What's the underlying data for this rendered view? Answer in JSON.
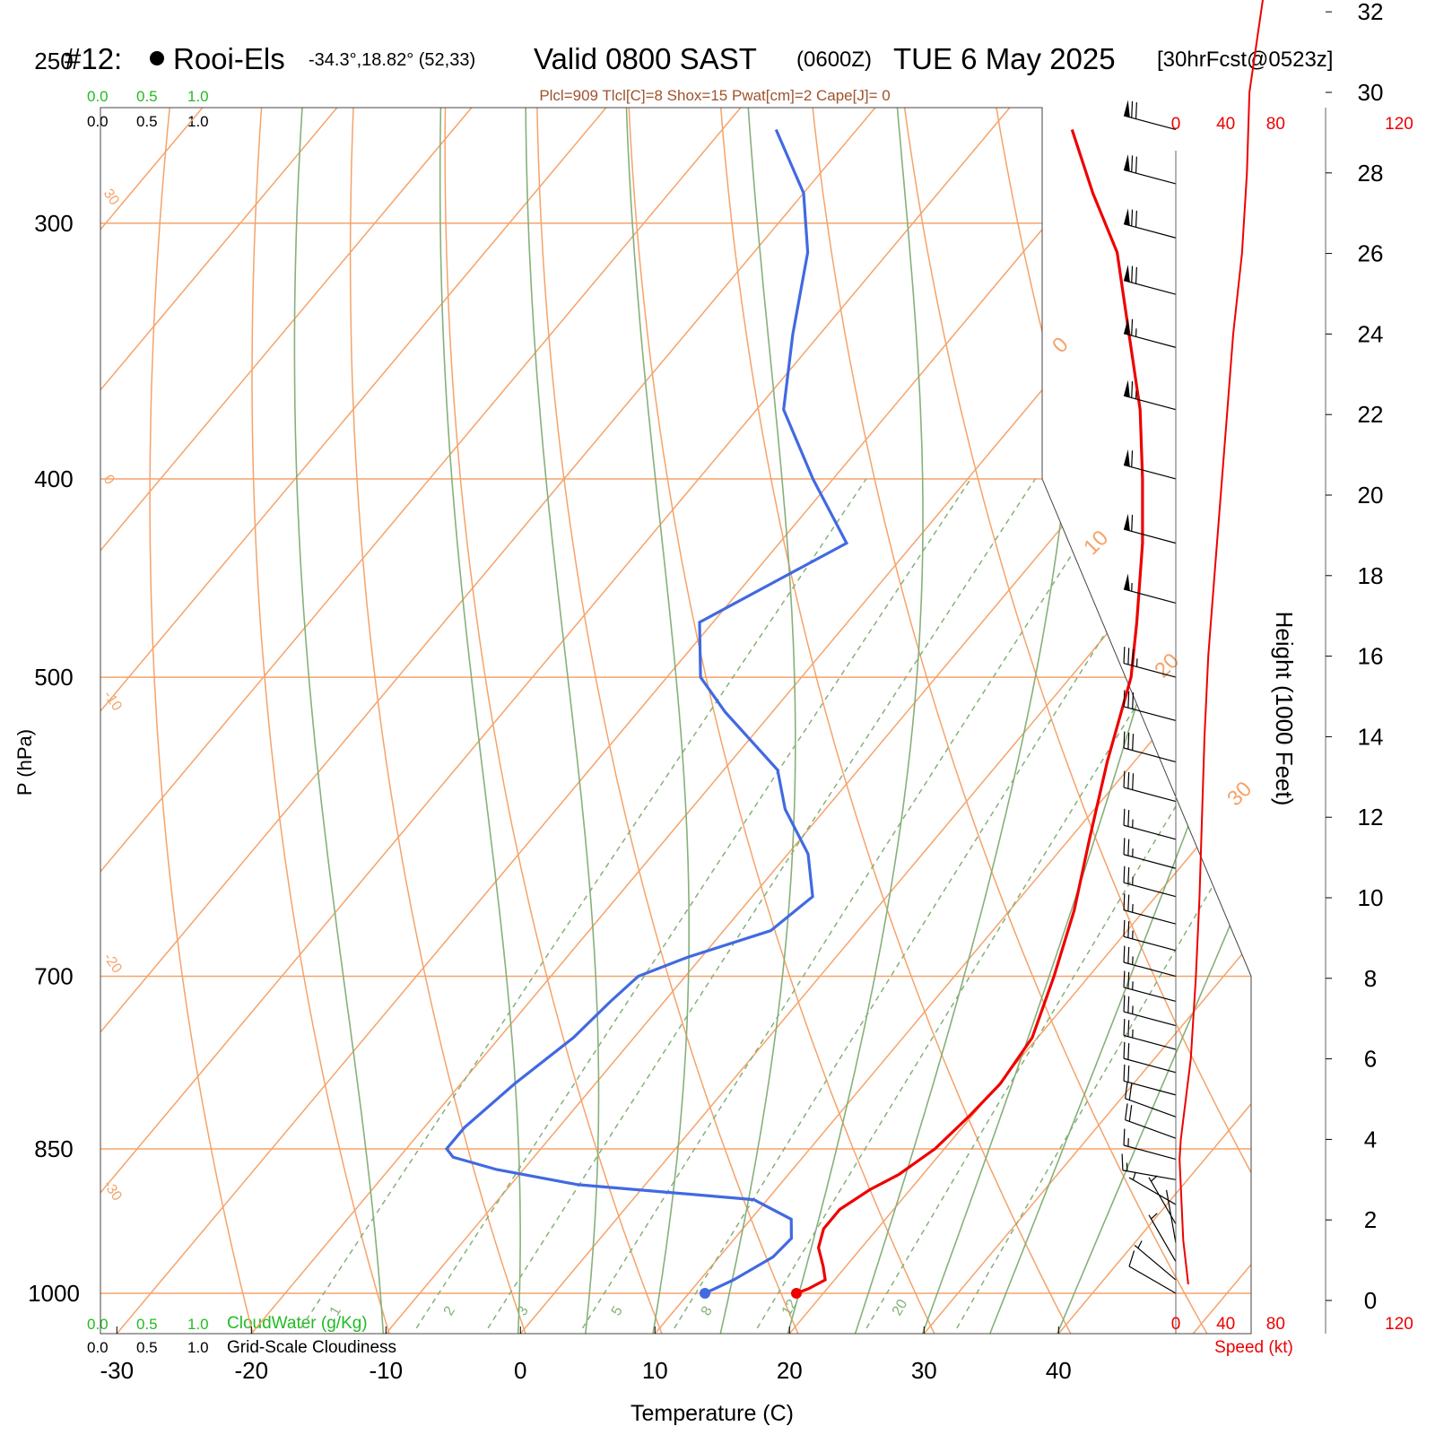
{
  "header": {
    "station_id": "#12:",
    "station_name": "Rooi-Els",
    "coords": "-34.3°,18.82° (52,33)",
    "valid": "Valid 0800 SAST",
    "zulu": "(0600Z)",
    "date": "TUE 6 May 2025",
    "forecast": "[30hrFcst@0523z]",
    "indices": "Plcl=909 Tlcl[C]=8 Shox=15 Pwat[cm]=2 Cape[J]= 0"
  },
  "legend": {
    "cloudwater_label": "CloudWater (g/Kg)",
    "cloudiness_label": "Grid-Scale Cloudiness",
    "scale_ticks": [
      "0.0",
      "0.5",
      "1.0"
    ]
  },
  "colors": {
    "isotherm": "#f5a36a",
    "dry_adiabat": "#86b07a",
    "mixing_ratio": "#86b07a",
    "temperature": "#ee0000",
    "dewpoint": "#4169e1",
    "cloudwater": "#22bb22",
    "indices_text": "#a0522d",
    "speed": "#ee0000",
    "wind_barb": "#000000"
  },
  "chart_data": [
    {
      "type": "skew-t",
      "xlabel": "Temperature (C)",
      "ylabel": "P (hPa)",
      "xlim": [
        -30,
        50
      ],
      "ylim": [
        1000,
        250
      ],
      "x_ticks": [
        -30,
        -20,
        -10,
        0,
        10,
        20,
        30,
        40
      ],
      "p_ticks": [
        250,
        300,
        400,
        500,
        700,
        850,
        1000
      ],
      "isotherm_labels": [
        "-30",
        "-20",
        "-10",
        "0",
        "10",
        "20",
        "30",
        "0",
        "10",
        "20",
        "30"
      ],
      "mixing_ratio_labels": [
        "1",
        "2",
        "3",
        "5",
        "8",
        "12",
        "20"
      ],
      "series": [
        {
          "variable": "temperature",
          "points": [
            {
              "p": 1000,
              "t": 18.0
            },
            {
              "p": 995,
              "t": 18.6
            },
            {
              "p": 985,
              "t": 19.3
            },
            {
              "p": 970,
              "t": 18.3
            },
            {
              "p": 950,
              "t": 16.8
            },
            {
              "p": 930,
              "t": 16.0
            },
            {
              "p": 910,
              "t": 16.0
            },
            {
              "p": 890,
              "t": 17.0
            },
            {
              "p": 875,
              "t": 18.2
            },
            {
              "p": 850,
              "t": 19.3
            },
            {
              "p": 820,
              "t": 19.8
            },
            {
              "p": 790,
              "t": 20.1
            },
            {
              "p": 750,
              "t": 19.6
            },
            {
              "p": 700,
              "t": 17.4
            },
            {
              "p": 650,
              "t": 14.8
            },
            {
              "p": 600,
              "t": 11.5
            },
            {
              "p": 550,
              "t": 8.0
            },
            {
              "p": 500,
              "t": 4.5
            },
            {
              "p": 470,
              "t": 1.5
            },
            {
              "p": 430,
              "t": -3.0
            },
            {
              "p": 400,
              "t": -7.0
            },
            {
              "p": 370,
              "t": -11.5
            },
            {
              "p": 340,
              "t": -17.0
            },
            {
              "p": 310,
              "t": -23.0
            },
            {
              "p": 290,
              "t": -28.5
            },
            {
              "p": 270,
              "t": -34.0
            }
          ]
        },
        {
          "variable": "dewpoint",
          "points": [
            {
              "p": 1000,
              "t": 11.2
            },
            {
              "p": 985,
              "t": 12.5
            },
            {
              "p": 960,
              "t": 14.0
            },
            {
              "p": 940,
              "t": 14.2
            },
            {
              "p": 920,
              "t": 13.0
            },
            {
              "p": 900,
              "t": 9.0
            },
            {
              "p": 885,
              "t": -5.0
            },
            {
              "p": 870,
              "t": -12.0
            },
            {
              "p": 858,
              "t": -16.0
            },
            {
              "p": 850,
              "t": -17.0
            },
            {
              "p": 830,
              "t": -17.0
            },
            {
              "p": 790,
              "t": -16.0
            },
            {
              "p": 750,
              "t": -14.5
            },
            {
              "p": 720,
              "t": -14.0
            },
            {
              "p": 700,
              "t": -13.5
            },
            {
              "p": 685,
              "t": -11.0
            },
            {
              "p": 665,
              "t": -6.5
            },
            {
              "p": 640,
              "t": -5.5
            },
            {
              "p": 610,
              "t": -8.5
            },
            {
              "p": 580,
              "t": -13.0
            },
            {
              "p": 555,
              "t": -16.0
            },
            {
              "p": 520,
              "t": -23.5
            },
            {
              "p": 500,
              "t": -27.5
            },
            {
              "p": 470,
              "t": -31.0
            },
            {
              "p": 430,
              "t": -25.0
            },
            {
              "p": 400,
              "t": -31.5
            },
            {
              "p": 370,
              "t": -38.0
            },
            {
              "p": 340,
              "t": -42.0
            },
            {
              "p": 310,
              "t": -46.0
            },
            {
              "p": 290,
              "t": -50.0
            },
            {
              "p": 270,
              "t": -56.0
            }
          ]
        }
      ]
    },
    {
      "type": "line",
      "xlabel": "Speed (kt)",
      "ylabel": "Height (1000 Feet)",
      "xlim": [
        0,
        120
      ],
      "ylim": [
        0,
        33
      ],
      "x_ticks": [
        0,
        40,
        80,
        120
      ],
      "y_ticks": [
        0,
        2,
        4,
        6,
        8,
        10,
        12,
        14,
        16,
        18,
        20,
        22,
        24,
        26,
        28,
        30,
        32
      ],
      "series": [
        {
          "points": [
            {
              "h": 0.4,
              "s": 10
            },
            {
              "h": 1.5,
              "s": 6
            },
            {
              "h": 3.5,
              "s": 3
            },
            {
              "h": 4.0,
              "s": 4
            },
            {
              "h": 6.0,
              "s": 12
            },
            {
              "h": 8.0,
              "s": 16
            },
            {
              "h": 10.0,
              "s": 19
            },
            {
              "h": 12.0,
              "s": 21
            },
            {
              "h": 14.0,
              "s": 23
            },
            {
              "h": 16.0,
              "s": 26
            },
            {
              "h": 18.0,
              "s": 31
            },
            {
              "h": 20.0,
              "s": 36
            },
            {
              "h": 22.0,
              "s": 41
            },
            {
              "h": 24.0,
              "s": 46
            },
            {
              "h": 26.0,
              "s": 53
            },
            {
              "h": 28.0,
              "s": 57
            },
            {
              "h": 30.0,
              "s": 59
            },
            {
              "h": 31.5,
              "s": 66
            },
            {
              "h": 33.0,
              "s": 73
            }
          ]
        }
      ]
    }
  ],
  "wind_barbs": [
    {
      "p": 1000,
      "dir": 300,
      "spd": 10
    },
    {
      "p": 985,
      "dir": 310,
      "spd": 8
    },
    {
      "p": 965,
      "dir": 330,
      "spd": 5
    },
    {
      "p": 945,
      "dir": 350,
      "spd": 4
    },
    {
      "p": 925,
      "dir": 330,
      "spd": 5
    },
    {
      "p": 905,
      "dir": 300,
      "spd": 8
    },
    {
      "p": 880,
      "dir": 280,
      "spd": 15
    },
    {
      "p": 860,
      "dir": 285,
      "spd": 15
    },
    {
      "p": 840,
      "dir": 290,
      "spd": 20
    },
    {
      "p": 820,
      "dir": 290,
      "spd": 20
    },
    {
      "p": 800,
      "dir": 285,
      "spd": 20
    },
    {
      "p": 780,
      "dir": 285,
      "spd": 20
    },
    {
      "p": 760,
      "dir": 285,
      "spd": 25
    },
    {
      "p": 740,
      "dir": 285,
      "spd": 25
    },
    {
      "p": 720,
      "dir": 285,
      "spd": 25
    },
    {
      "p": 700,
      "dir": 285,
      "spd": 25
    },
    {
      "p": 680,
      "dir": 285,
      "spd": 25
    },
    {
      "p": 660,
      "dir": 285,
      "spd": 25
    },
    {
      "p": 640,
      "dir": 285,
      "spd": 25
    },
    {
      "p": 620,
      "dir": 285,
      "spd": 25
    },
    {
      "p": 600,
      "dir": 285,
      "spd": 25
    },
    {
      "p": 575,
      "dir": 285,
      "spd": 30
    },
    {
      "p": 550,
      "dir": 285,
      "spd": 30
    },
    {
      "p": 525,
      "dir": 285,
      "spd": 30
    },
    {
      "p": 500,
      "dir": 285,
      "spd": 35
    },
    {
      "p": 460,
      "dir": 285,
      "spd": 55
    },
    {
      "p": 430,
      "dir": 285,
      "spd": 60
    },
    {
      "p": 400,
      "dir": 285,
      "spd": 60
    },
    {
      "p": 370,
      "dir": 285,
      "spd": 65
    },
    {
      "p": 345,
      "dir": 285,
      "spd": 65
    },
    {
      "p": 325,
      "dir": 285,
      "spd": 70
    },
    {
      "p": 305,
      "dir": 285,
      "spd": 70
    },
    {
      "p": 287,
      "dir": 285,
      "spd": 70
    },
    {
      "p": 270,
      "dir": 285,
      "spd": 70
    }
  ]
}
